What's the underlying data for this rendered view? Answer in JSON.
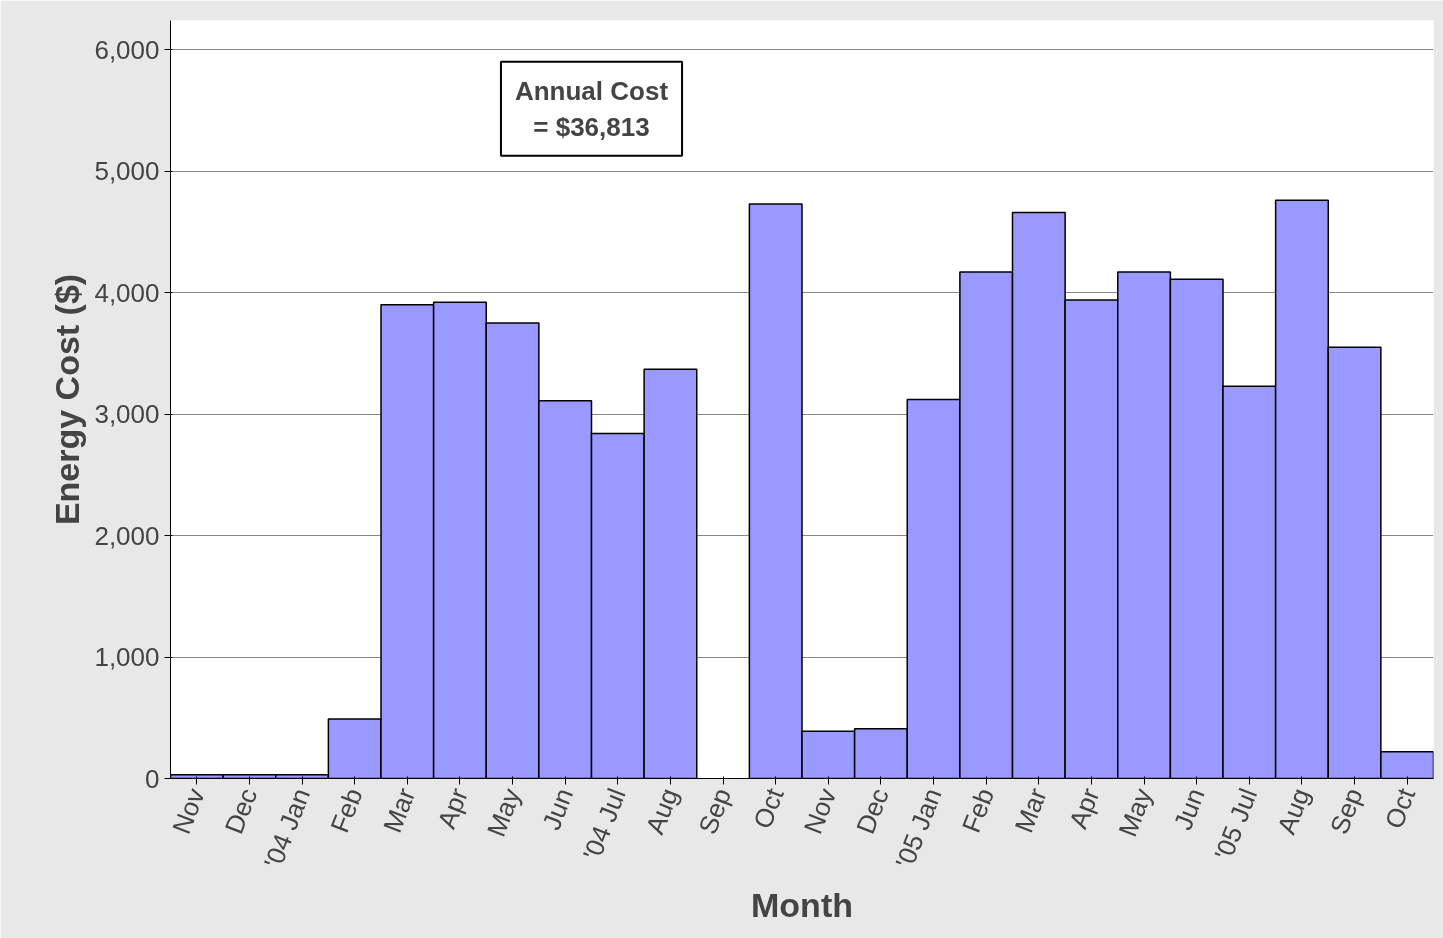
{
  "chart_data": {
    "type": "bar",
    "xlabel": "Month",
    "ylabel": "Energy Cost ($)",
    "categories": [
      "Nov",
      "Dec",
      "'04 Jan",
      "Feb",
      "Mar",
      "Apr",
      "May",
      "Jun",
      "'04 Jul",
      "Aug",
      "Sep",
      "Oct",
      "Nov",
      "Dec",
      "'05 Jan",
      "Feb",
      "Mar",
      "Apr",
      "May",
      "Jun",
      "'05 Jul",
      "Aug",
      "Sep",
      "Oct"
    ],
    "values": [
      30,
      30,
      30,
      490,
      3900,
      3920,
      3750,
      3110,
      2840,
      3370,
      null,
      4730,
      390,
      410,
      3120,
      4170,
      4660,
      3940,
      4170,
      4110,
      3230,
      4760,
      3550,
      220
    ],
    "color": "#9999ff",
    "ylim": [
      0,
      6000
    ],
    "yticks": [
      0,
      {
        "value": 1000,
        "label": "1,000"
      },
      {
        "value": 2000,
        "label": "2,000"
      },
      {
        "value": 3000,
        "label": "3,000"
      },
      {
        "value": 4000,
        "label": "4,000"
      },
      {
        "value": 5000,
        "label": "5,000"
      },
      {
        "value": 6000,
        "label": "6,000"
      }
    ],
    "grid": "y",
    "annotations": [
      "Annual Cost\n= $36,813"
    ]
  }
}
